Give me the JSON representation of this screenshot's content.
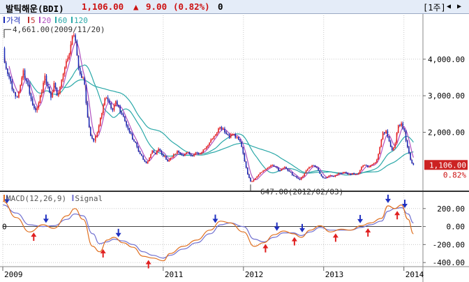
{
  "header": {
    "instrument": "발틱해운(BDI)",
    "price": "1,106.00",
    "change_arrow": "▲",
    "change": "9.00",
    "change_pct": "(0.82%)",
    "volume": "0",
    "period_button": "[1주]",
    "scroll_left_glyph": "◀",
    "scroll_right_glyph": "▶"
  },
  "colors": {
    "up_candle": "#e8262a",
    "down_candle": "#1a2bb8",
    "ma5": "#c03030",
    "ma20": "#b050c0",
    "ma60": "#2aa8a8",
    "ma120": "#2aa8a8",
    "macd": "#e07020",
    "signal": "#7070d0",
    "buy_arrow": "#e02020",
    "sell_arrow": "#2030c0",
    "price_box": "#cc2222"
  },
  "chart_data": [
    {
      "type": "candlestick",
      "name": "price",
      "legend": [
        {
          "label": "가격",
          "color_key": "down_candle"
        },
        {
          "label": "5",
          "color_key": "ma5"
        },
        {
          "label": "20",
          "color_key": "ma20"
        },
        {
          "label": "60",
          "color_key": "ma60"
        },
        {
          "label": "120",
          "color_key": "ma120"
        }
      ],
      "ylim": [
        500,
        5200
      ],
      "yticks": [
        {
          "value": 2000,
          "label": "2,000.00"
        },
        {
          "value": 3000,
          "label": "3,000.00"
        },
        {
          "value": 4000,
          "label": "4,000.00"
        }
      ],
      "last_price_label": "1,106.00",
      "last_change_label": "0.82%",
      "last_price": 1106,
      "annotations": [
        {
          "text": "4,661.00(2009/11/20)",
          "date": "2009-11-20",
          "value": 4661
        },
        {
          "text": "647.00(2012/02/03)",
          "date": "2012-02-03",
          "value": 647
        }
      ],
      "xticks": [
        {
          "label": "2009",
          "date": "2009.0"
        },
        {
          "label": "2011",
          "date": "2011.0"
        },
        {
          "label": "2012",
          "date": "2012.0"
        },
        {
          "label": "2013",
          "date": "2013.0"
        },
        {
          "label": "2014",
          "date": "2014.0"
        }
      ],
      "price_path": [
        [
          "2009-01-02",
          4300
        ],
        [
          "2009-01-09",
          3900
        ],
        [
          "2009-01-23",
          3600
        ],
        [
          "2009-02-06",
          3400
        ],
        [
          "2009-02-20",
          3100
        ],
        [
          "2009-03-06",
          2950
        ],
        [
          "2009-03-20",
          3300
        ],
        [
          "2009-04-03",
          3700
        ],
        [
          "2009-04-17",
          3400
        ],
        [
          "2009-05-01",
          3050
        ],
        [
          "2009-05-15",
          2750
        ],
        [
          "2009-05-29",
          2600
        ],
        [
          "2009-06-12",
          2800
        ],
        [
          "2009-06-26",
          3100
        ],
        [
          "2009-07-10",
          3550
        ],
        [
          "2009-07-24",
          3250
        ],
        [
          "2009-08-07",
          2950
        ],
        [
          "2009-08-21",
          3350
        ],
        [
          "2009-09-04",
          3000
        ],
        [
          "2009-09-18",
          3250
        ],
        [
          "2009-10-02",
          3600
        ],
        [
          "2009-10-16",
          3950
        ],
        [
          "2009-11-06",
          4400
        ],
        [
          "2009-11-20",
          4661
        ],
        [
          "2009-12-04",
          4100
        ],
        [
          "2009-12-18",
          3600
        ],
        [
          "2010-01-08",
          3300
        ],
        [
          "2010-01-22",
          2400
        ],
        [
          "2010-02-05",
          1900
        ],
        [
          "2010-02-19",
          1750
        ],
        [
          "2010-03-05",
          2000
        ],
        [
          "2010-03-19",
          2400
        ],
        [
          "2010-04-02",
          2750
        ],
        [
          "2010-04-16",
          2950
        ],
        [
          "2010-04-30",
          2800
        ],
        [
          "2010-05-14",
          2600
        ],
        [
          "2010-05-28",
          2850
        ],
        [
          "2010-06-11",
          2700
        ],
        [
          "2010-06-25",
          2500
        ],
        [
          "2010-07-09",
          2300
        ],
        [
          "2010-07-23",
          2100
        ],
        [
          "2010-08-06",
          1950
        ],
        [
          "2010-08-20",
          1750
        ],
        [
          "2010-09-03",
          1600
        ],
        [
          "2010-09-17",
          1400
        ],
        [
          "2010-10-01",
          1250
        ],
        [
          "2010-10-15",
          1150
        ],
        [
          "2010-10-29",
          1300
        ],
        [
          "2010-11-12",
          1500
        ],
        [
          "2010-11-26",
          1400
        ],
        [
          "2010-12-10",
          1550
        ],
        [
          "2010-12-24",
          1400
        ],
        [
          "2011-01-07",
          1350
        ],
        [
          "2011-01-21",
          1200
        ],
        [
          "2011-02-04",
          1300
        ],
        [
          "2011-02-18",
          1400
        ],
        [
          "2011-03-04",
          1500
        ],
        [
          "2011-03-18",
          1400
        ],
        [
          "2011-04-01",
          1350
        ],
        [
          "2011-04-15",
          1450
        ],
        [
          "2011-04-29",
          1400
        ],
        [
          "2011-05-13",
          1350
        ],
        [
          "2011-05-27",
          1450
        ],
        [
          "2011-06-10",
          1400
        ],
        [
          "2011-06-24",
          1450
        ],
        [
          "2011-07-08",
          1550
        ],
        [
          "2011-07-22",
          1650
        ],
        [
          "2011-08-05",
          1800
        ],
        [
          "2011-08-19",
          1900
        ],
        [
          "2011-09-02",
          2000
        ],
        [
          "2011-09-16",
          2150
        ],
        [
          "2011-09-30",
          2100
        ],
        [
          "2011-10-14",
          1950
        ],
        [
          "2011-10-28",
          1850
        ],
        [
          "2011-11-11",
          1950
        ],
        [
          "2011-11-25",
          1850
        ],
        [
          "2011-12-09",
          1800
        ],
        [
          "2011-12-23",
          1600
        ],
        [
          "2012-01-06",
          1200
        ],
        [
          "2012-01-20",
          850
        ],
        [
          "2012-02-03",
          647
        ],
        [
          "2012-02-17",
          700
        ],
        [
          "2012-03-02",
          800
        ],
        [
          "2012-03-16",
          900
        ],
        [
          "2012-03-30",
          950
        ],
        [
          "2012-04-13",
          1000
        ],
        [
          "2012-04-27",
          1050
        ],
        [
          "2012-05-11",
          1100
        ],
        [
          "2012-05-25",
          1050
        ],
        [
          "2012-06-08",
          950
        ],
        [
          "2012-06-22",
          1000
        ],
        [
          "2012-07-06",
          1050
        ],
        [
          "2012-07-20",
          950
        ],
        [
          "2012-08-03",
          900
        ],
        [
          "2012-08-17",
          800
        ],
        [
          "2012-08-31",
          750
        ],
        [
          "2012-09-14",
          700
        ],
        [
          "2012-09-28",
          800
        ],
        [
          "2012-10-12",
          950
        ],
        [
          "2012-10-26",
          1050
        ],
        [
          "2012-11-09",
          1100
        ],
        [
          "2012-11-23",
          1050
        ],
        [
          "2012-12-07",
          950
        ],
        [
          "2012-12-21",
          800
        ],
        [
          "2013-01-04",
          750
        ],
        [
          "2013-01-18",
          780
        ],
        [
          "2013-02-01",
          820
        ],
        [
          "2013-02-15",
          780
        ],
        [
          "2013-03-01",
          850
        ],
        [
          "2013-03-15",
          880
        ],
        [
          "2013-03-29",
          900
        ],
        [
          "2013-04-12",
          880
        ],
        [
          "2013-04-26",
          850
        ],
        [
          "2013-05-10",
          880
        ],
        [
          "2013-05-24",
          850
        ],
        [
          "2013-06-07",
          880
        ],
        [
          "2013-06-21",
          1050
        ],
        [
          "2013-07-05",
          1100
        ],
        [
          "2013-07-19",
          1050
        ],
        [
          "2013-08-02",
          1100
        ],
        [
          "2013-08-16",
          1150
        ],
        [
          "2013-08-30",
          1250
        ],
        [
          "2013-09-13",
          1600
        ],
        [
          "2013-09-27",
          2000
        ],
        [
          "2013-10-11",
          2050
        ],
        [
          "2013-10-25",
          1750
        ],
        [
          "2013-11-08",
          1500
        ],
        [
          "2013-11-22",
          1700
        ],
        [
          "2013-12-06",
          2200
        ],
        [
          "2013-12-20",
          2250
        ],
        [
          "2014-01-03",
          2050
        ],
        [
          "2014-01-17",
          1600
        ],
        [
          "2014-01-31",
          1250
        ],
        [
          "2014-02-14",
          1106
        ]
      ],
      "ma_windows": {
        "ma5": 2,
        "ma20": 5,
        "ma60": 18,
        "ma120": 40
      }
    },
    {
      "type": "line",
      "name": "macd",
      "legend": [
        {
          "label": "MACD(12,26,9)",
          "color_key": "macd"
        },
        {
          "label": "Signal",
          "color_key": "signal"
        }
      ],
      "ylim": [
        -430,
        330
      ],
      "yticks": [
        {
          "value": 200,
          "label": "200.00"
        },
        {
          "value": 0,
          "label": "0.00"
        },
        {
          "value": -200,
          "label": "-200.00"
        },
        {
          "value": -400,
          "label": "-400.00"
        }
      ],
      "zero_line": 0,
      "zero_label": "0",
      "macd": [
        [
          "2009-01-02",
          280
        ],
        [
          "2009-03-01",
          100
        ],
        [
          "2009-05-01",
          -60
        ],
        [
          "2009-07-01",
          20
        ],
        [
          "2009-08-20",
          -20
        ],
        [
          "2009-10-20",
          120
        ],
        [
          "2009-11-25",
          200
        ],
        [
          "2010-01-01",
          80
        ],
        [
          "2010-02-15",
          -220
        ],
        [
          "2010-03-15",
          -280
        ],
        [
          "2010-04-20",
          -150
        ],
        [
          "2010-05-20",
          -120
        ],
        [
          "2010-07-01",
          -180
        ],
        [
          "2010-08-15",
          -230
        ],
        [
          "2010-10-01",
          -330
        ],
        [
          "2010-11-15",
          -350
        ],
        [
          "2011-01-01",
          -380
        ],
        [
          "2011-02-01",
          -300
        ],
        [
          "2011-04-01",
          -220
        ],
        [
          "2011-06-01",
          -150
        ],
        [
          "2011-08-01",
          -40
        ],
        [
          "2011-09-20",
          60
        ],
        [
          "2011-11-01",
          40
        ],
        [
          "2012-01-01",
          -60
        ],
        [
          "2012-02-20",
          -220
        ],
        [
          "2012-04-01",
          -180
        ],
        [
          "2012-05-20",
          -90
        ],
        [
          "2012-07-01",
          -50
        ],
        [
          "2012-08-15",
          -80
        ],
        [
          "2012-09-20",
          -120
        ],
        [
          "2012-11-01",
          -40
        ],
        [
          "2012-12-15",
          10
        ],
        [
          "2013-02-01",
          -60
        ],
        [
          "2013-03-20",
          -30
        ],
        [
          "2013-05-01",
          -40
        ],
        [
          "2013-06-20",
          10
        ],
        [
          "2013-08-01",
          40
        ],
        [
          "2013-09-20",
          90
        ],
        [
          "2013-10-20",
          230
        ],
        [
          "2013-11-20",
          200
        ],
        [
          "2013-12-20",
          240
        ],
        [
          "2014-01-20",
          80
        ],
        [
          "2014-02-14",
          -80
        ]
      ],
      "signal": [
        [
          "2009-01-02",
          240
        ],
        [
          "2009-03-01",
          150
        ],
        [
          "2009-05-01",
          20
        ],
        [
          "2009-07-01",
          0
        ],
        [
          "2009-08-20",
          10
        ],
        [
          "2009-10-20",
          80
        ],
        [
          "2009-11-25",
          140
        ],
        [
          "2010-01-01",
          120
        ],
        [
          "2010-02-15",
          -80
        ],
        [
          "2010-03-15",
          -190
        ],
        [
          "2010-04-20",
          -170
        ],
        [
          "2010-05-20",
          -140
        ],
        [
          "2010-07-01",
          -160
        ],
        [
          "2010-08-15",
          -200
        ],
        [
          "2010-10-01",
          -280
        ],
        [
          "2010-11-15",
          -320
        ],
        [
          "2011-01-01",
          -350
        ],
        [
          "2011-02-01",
          -320
        ],
        [
          "2011-04-01",
          -250
        ],
        [
          "2011-06-01",
          -180
        ],
        [
          "2011-08-01",
          -80
        ],
        [
          "2011-09-20",
          20
        ],
        [
          "2011-11-01",
          40
        ],
        [
          "2012-01-01",
          0
        ],
        [
          "2012-02-20",
          -140
        ],
        [
          "2012-04-01",
          -170
        ],
        [
          "2012-05-20",
          -120
        ],
        [
          "2012-07-01",
          -70
        ],
        [
          "2012-08-15",
          -70
        ],
        [
          "2012-09-20",
          -100
        ],
        [
          "2012-11-01",
          -60
        ],
        [
          "2012-12-15",
          -10
        ],
        [
          "2013-02-01",
          -40
        ],
        [
          "2013-03-20",
          -40
        ],
        [
          "2013-05-01",
          -40
        ],
        [
          "2013-06-20",
          -10
        ],
        [
          "2013-08-01",
          20
        ],
        [
          "2013-09-20",
          60
        ],
        [
          "2013-10-20",
          170
        ],
        [
          "2013-11-20",
          200
        ],
        [
          "2013-12-20",
          210
        ],
        [
          "2014-01-20",
          140
        ],
        [
          "2014-02-14",
          40
        ]
      ],
      "sell_signals": [
        "2009-01-20",
        "2009-07-15",
        "2010-06-10",
        "2011-08-25",
        "2012-06-01",
        "2012-09-25",
        "2013-06-15",
        "2013-10-20",
        "2014-01-05"
      ],
      "buy_signals": [
        "2009-05-20",
        "2010-04-01",
        "2010-10-25",
        "2012-04-10",
        "2012-08-20",
        "2013-02-25",
        "2013-07-20",
        "2013-12-01"
      ],
      "xticks": [
        {
          "label": "2009",
          "date": "2009.0"
        },
        {
          "label": "2011",
          "date": "2011.0"
        },
        {
          "label": "2012",
          "date": "2012.0"
        },
        {
          "label": "2013",
          "date": "2013.0"
        },
        {
          "label": "2014",
          "date": "2014.0"
        }
      ]
    }
  ]
}
